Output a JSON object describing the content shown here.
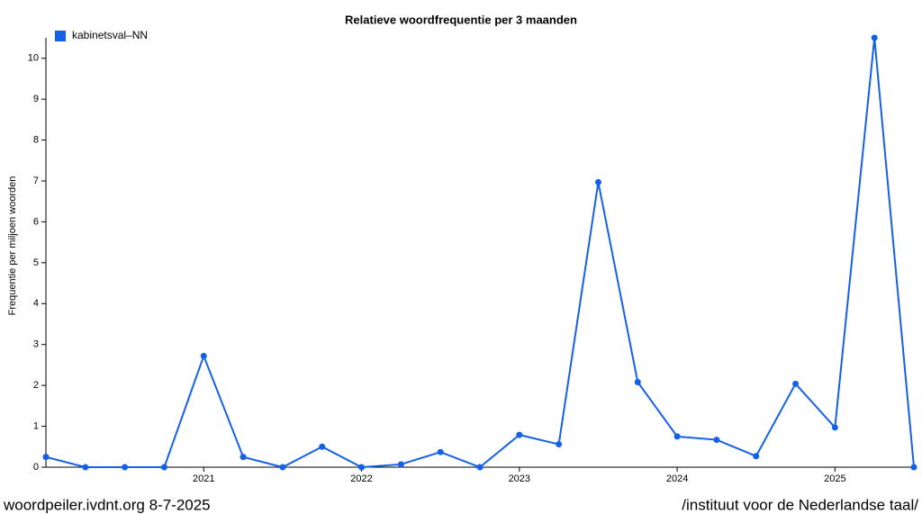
{
  "chart_data": {
    "type": "line",
    "title": "Relatieve woordfrequentie per 3 maanden",
    "y_label": "Frequentie per miljoen woorden",
    "x": [
      2020,
      2020.25,
      2020.5,
      2020.75,
      2021,
      2021.25,
      2021.5,
      2021.75,
      2022,
      2022.25,
      2022.5,
      2022.75,
      2023,
      2023.25,
      2023.5,
      2023.75,
      2024,
      2024.25,
      2024.5,
      2024.75,
      2025,
      2025.25,
      2025.5
    ],
    "series": [
      {
        "name": "kabinetsval–NN",
        "color": "#1560e8",
        "values": [
          0.25,
          0,
          0,
          0,
          2.72,
          0.25,
          0,
          0.5,
          0,
          0.07,
          0.37,
          0,
          0.79,
          0.56,
          6.97,
          2.08,
          0.75,
          0.67,
          0.27,
          2.04,
          0.97,
          10.5,
          0
        ]
      }
    ],
    "xlim": [
      2020,
      2025.5
    ],
    "xticks": [
      2021,
      2022,
      2023,
      2024,
      2025
    ],
    "ylim": [
      0,
      10.5
    ],
    "yticks": [
      0,
      1,
      2,
      3,
      4,
      5,
      6,
      7,
      8,
      9,
      10
    ],
    "legend": "top-left"
  },
  "footer": {
    "left": "woordpeiler.ivdnt.org 8-7-2025",
    "right": "/instituut voor de Nederlandse taal/"
  }
}
